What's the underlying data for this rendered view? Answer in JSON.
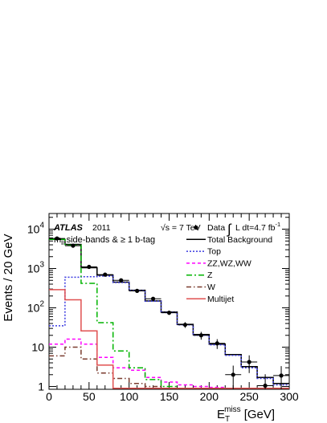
{
  "chart_data": {
    "type": "line",
    "title": "",
    "xlabel": "E_T^miss [GeV]",
    "xlabel_parts": {
      "main": "E",
      "sub": "T",
      "sup": "miss",
      "unit": "[GeV]"
    },
    "ylabel": "Events / 20 GeV",
    "xlim": [
      0,
      300
    ],
    "ylim": [
      0.85,
      25000
    ],
    "yscale": "log",
    "grid": false,
    "legend_position": "top-right",
    "x_tick_labels": [
      "0",
      "50",
      "100",
      "150",
      "200",
      "250",
      "300"
    ],
    "y_tick_labels": [
      {
        "base": "1",
        "exp": "",
        "value": 1
      },
      {
        "base": "10",
        "exp": "",
        "value": 10
      },
      {
        "base": "10",
        "exp": "2",
        "value": 100
      },
      {
        "base": "10",
        "exp": "3",
        "value": 1000
      },
      {
        "base": "10",
        "exp": "4",
        "value": 10000
      }
    ],
    "annotations": {
      "atlas": "ATLAS",
      "year": "2011",
      "energy": "√s = 7 TeV",
      "lumi_int": "∫",
      "lumi_text": "L dt=4.7 fb",
      "lumi_exp": "-1",
      "selection_main": "m",
      "selection_sub": "ll",
      "selection_rest": " side-bands & ≥ 1 b-tag"
    },
    "bin_edges": [
      0,
      20,
      40,
      60,
      80,
      100,
      120,
      140,
      160,
      180,
      200,
      220,
      240,
      260,
      280,
      300
    ],
    "series": [
      {
        "name": "Data",
        "kind": "points",
        "color": "#000000",
        "values": [
          5800,
          3800,
          1100,
          700,
          500,
          270,
          170,
          75,
          37,
          20,
          12.5,
          2.0,
          4.2,
          1.05,
          1.9
        ],
        "errors": [
          76,
          62,
          33,
          27,
          22,
          16,
          13,
          8.7,
          6.1,
          4.5,
          3.5,
          1.4,
          2.0,
          1.0,
          1.4
        ]
      },
      {
        "name": "Total Background",
        "kind": "hist",
        "color": "#000000",
        "dash": "",
        "values": [
          5500,
          4100,
          1050,
          680,
          450,
          280,
          150,
          78,
          38,
          21,
          12,
          6.5,
          3.2,
          1.7,
          1.2
        ]
      },
      {
        "name": "Top",
        "kind": "hist",
        "color": "#3a3ae0",
        "dash": "2,2",
        "values": [
          35,
          600,
          620,
          640,
          440,
          275,
          148,
          76,
          37,
          20,
          11.5,
          6.2,
          3.0,
          1.6,
          1.1
        ]
      },
      {
        "name": "ZZ,WZ,WW",
        "kind": "hist",
        "color": "#ff00ff",
        "dash": "4,3",
        "values": [
          12,
          16,
          12,
          5.5,
          3.0,
          2.6,
          1.7,
          1.3,
          1.1,
          1.0,
          0.95,
          0.9,
          0.9,
          0.9,
          0.9
        ]
      },
      {
        "name": "Z",
        "kind": "hist",
        "color": "#00b400",
        "dash": "7,3,2,3",
        "values": [
          5500,
          3900,
          420,
          42,
          8,
          3.0,
          1.5,
          1.0,
          0.9,
          0.9,
          0.9,
          0.9,
          0.9,
          0.9,
          0.9
        ]
      },
      {
        "name": "W",
        "kind": "hist",
        "color": "#7a3b2e",
        "dash": "6,3,1.5,3",
        "values": [
          6,
          10,
          5,
          2.2,
          1.6,
          1.2,
          1.0,
          0.9,
          0.9,
          0.9,
          0.9,
          0.9,
          0.9,
          0.9,
          0.9
        ]
      },
      {
        "name": "Multijet",
        "kind": "hist",
        "color": "#e05050",
        "dash": "",
        "values": [
          290,
          160,
          26,
          3.5,
          0.9,
          0.9,
          0.9,
          0.9,
          0.9,
          0.9,
          0.9,
          0.9,
          0.9,
          0.9,
          0.9
        ]
      }
    ]
  }
}
